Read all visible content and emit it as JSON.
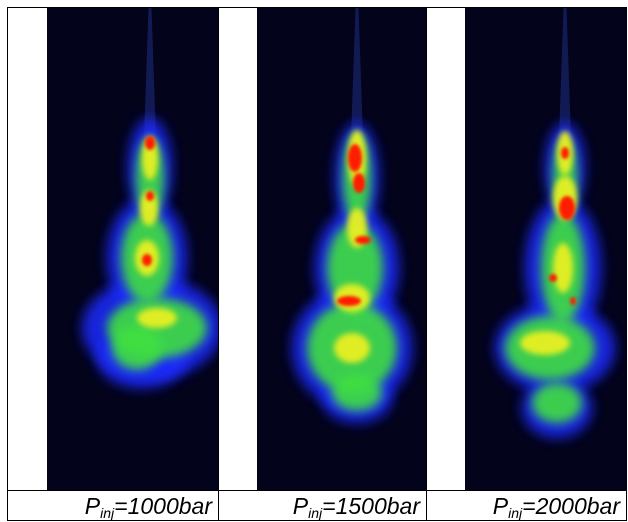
{
  "panels": [
    {
      "label": {
        "symbol": "P",
        "subscript": "inj",
        "rest": "=1000bar"
      }
    },
    {
      "label": {
        "symbol": "P",
        "subscript": "inj",
        "rest": "=1500bar"
      }
    },
    {
      "label": {
        "symbol": "P",
        "subscript": "inj",
        "rest": "=2000bar"
      }
    }
  ]
}
